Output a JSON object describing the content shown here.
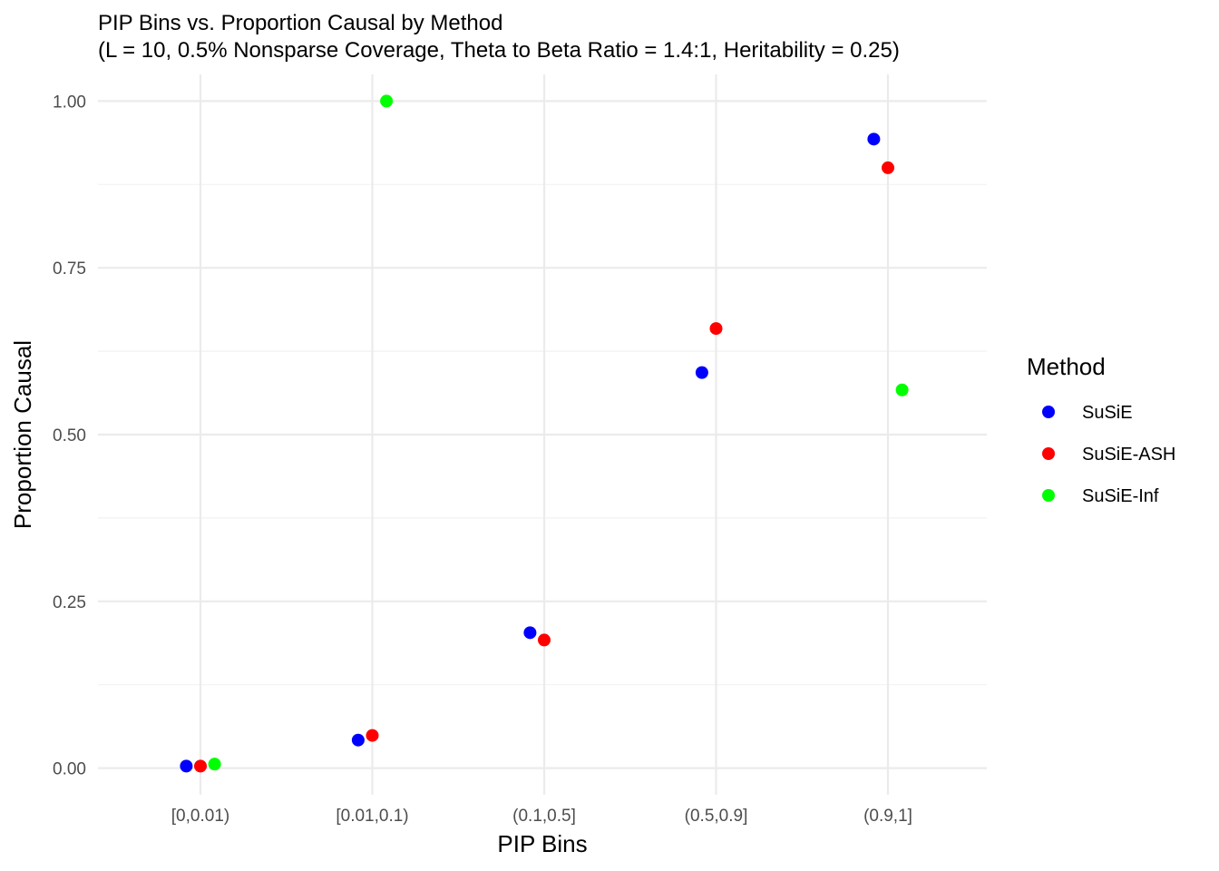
{
  "chart_data": {
    "type": "scatter",
    "title": "PIP Bins vs. Proportion Causal by Method",
    "subtitle": "(L = 10, 0.5% Nonsparse Coverage, Theta to Beta Ratio = 1.4:1, Heritability = 0.25)",
    "xlabel": "PIP Bins",
    "ylabel": "Proportion Causal",
    "categories": [
      "[0,0.01)",
      "[0.01,0.1)",
      "(0.1,0.5]",
      "(0.5,0.9]",
      "(0.9,1]"
    ],
    "ylim": [
      -0.04,
      1.04
    ],
    "yticks": [
      0.0,
      0.25,
      0.5,
      0.75,
      1.0
    ],
    "ytick_labels": [
      "0.00",
      "0.25",
      "0.50",
      "0.75",
      "1.00"
    ],
    "grid": true,
    "legend": {
      "title": "Method",
      "position": "right"
    },
    "series": [
      {
        "name": "SuSiE",
        "color": "#0000ff",
        "dodge": -1,
        "values": [
          0.003,
          0.042,
          0.203,
          0.593,
          0.943
        ]
      },
      {
        "name": "SuSiE-ASH",
        "color": "#ff0000",
        "dodge": 0,
        "values": [
          0.003,
          0.049,
          0.192,
          0.659,
          0.9
        ]
      },
      {
        "name": "SuSiE-Inf",
        "color": "#00ff00",
        "dodge": 1,
        "values": [
          0.006,
          1.0,
          null,
          null,
          0.567
        ]
      }
    ]
  }
}
